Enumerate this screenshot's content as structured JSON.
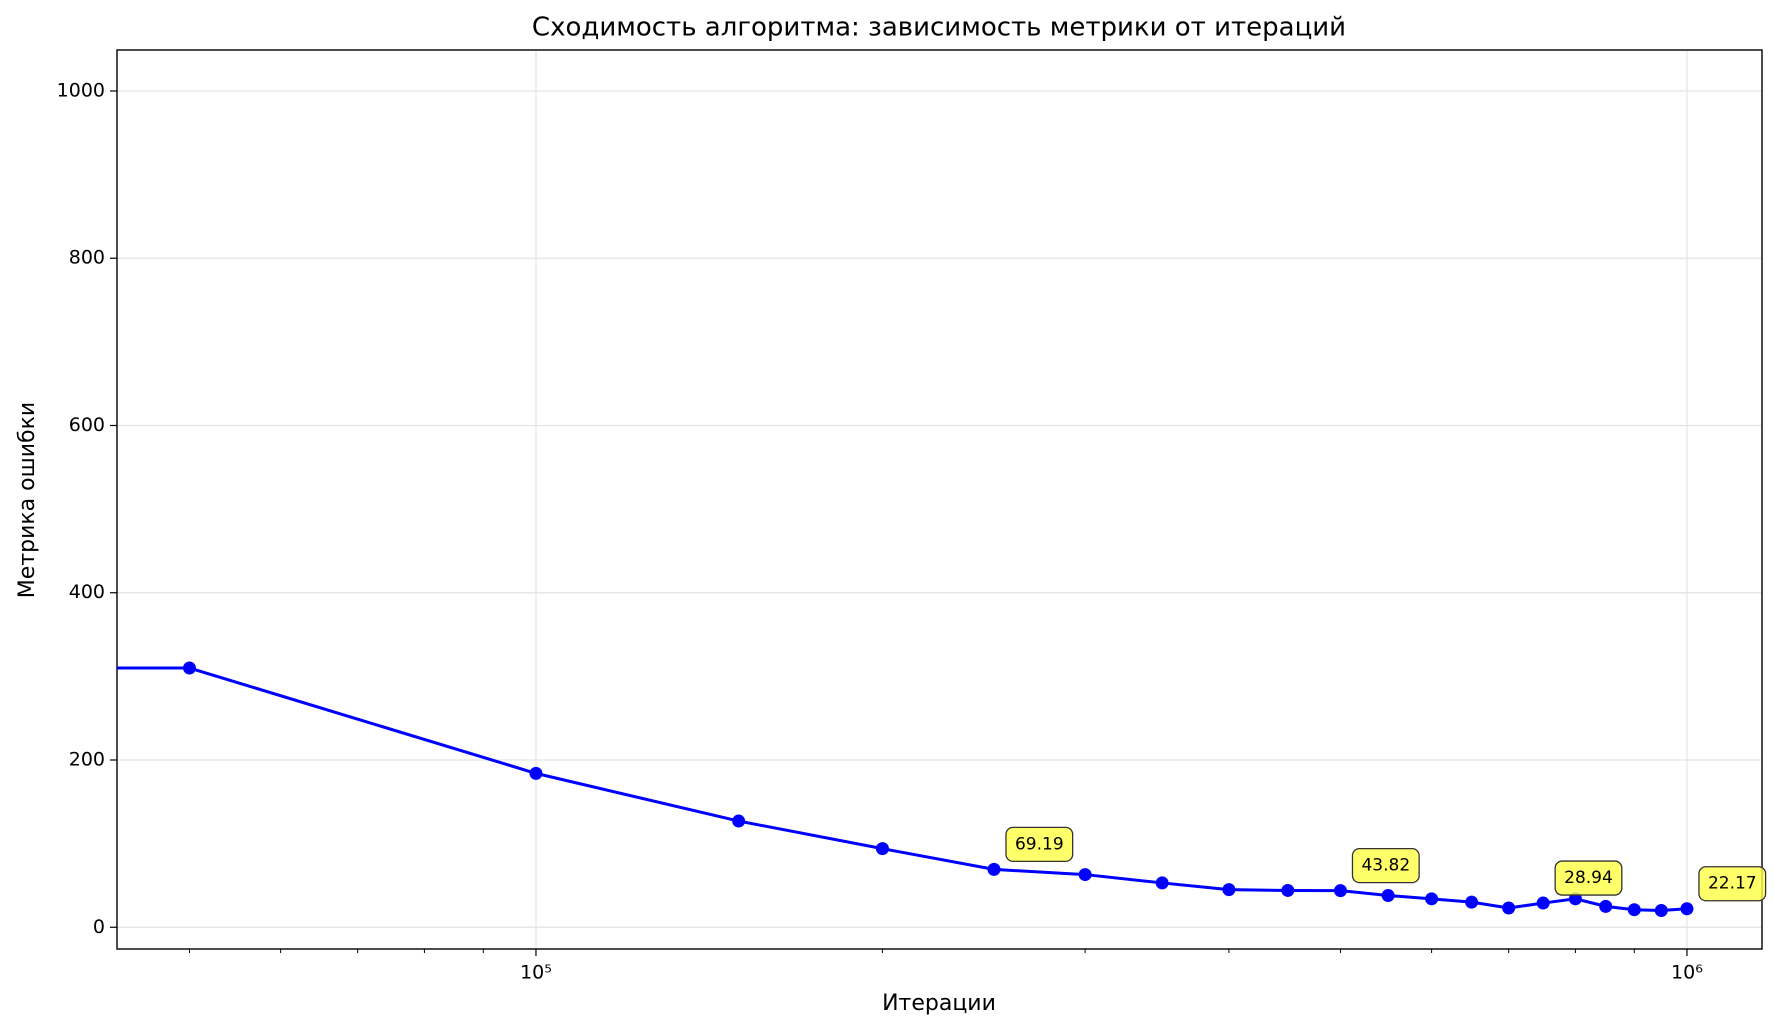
{
  "chart_data": {
    "type": "line",
    "title": "Сходимость алгоритма: зависимость метрики от итераций",
    "xlabel": "Итерации",
    "ylabel": "Метрика ошибки",
    "xscale": "log",
    "x": [
      10000,
      50000,
      100000,
      150000,
      200000,
      250000,
      300000,
      350000,
      400000,
      450000,
      500000,
      550000,
      600000,
      650000,
      700000,
      750000,
      800000,
      850000,
      900000,
      950000,
      1000000
    ],
    "series": [
      {
        "name": "Метрика",
        "color": "#0000ff",
        "values": [
          310,
          310,
          184,
          127,
          94,
          69.19,
          63,
          53,
          45,
          44,
          43.82,
          38,
          34,
          30,
          23,
          28.94,
          34,
          25,
          21,
          20,
          22.17
        ]
      }
    ],
    "annotations": [
      {
        "x": 250000,
        "text": "69.19"
      },
      {
        "x": 500000,
        "text": "43.82"
      },
      {
        "x": 750000,
        "text": "28.94"
      },
      {
        "x": 1000000,
        "text": "22.17"
      }
    ],
    "annotation_color": "#ffff44",
    "xlim": [
      43250,
      1162000
    ],
    "xticks": [
      {
        "value": 100000,
        "label": "10⁵"
      },
      {
        "value": 1000000,
        "label": "10⁶"
      }
    ],
    "xminor_ticks": [
      50000,
      60000,
      70000,
      80000,
      90000,
      200000,
      300000,
      400000,
      500000,
      600000,
      700000,
      800000,
      900000
    ],
    "ylim": [
      -26,
      1049
    ],
    "yticks": [
      0,
      200,
      400,
      600,
      800,
      1000
    ],
    "grid": true
  }
}
